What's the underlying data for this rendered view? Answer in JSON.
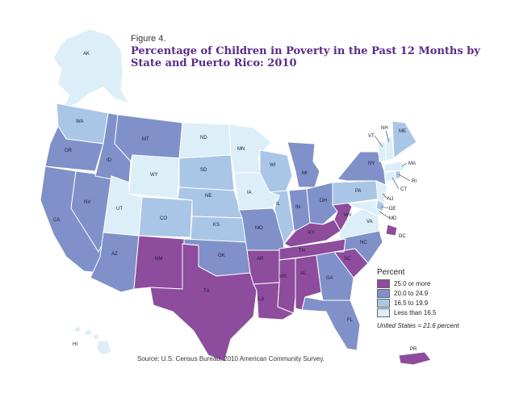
{
  "figure": {
    "label": "Figure 4.",
    "title": "Percentage of Children in Poverty in the Past 12 Months by State and Puerto Rico: 2010",
    "source": "Source: U.S. Census Bureau, 2010 American Community Survey."
  },
  "colors": {
    "c25": "#8e4c9c",
    "c20": "#7f91c8",
    "c16": "#a9c6e6",
    "clt": "#dceef8",
    "border": "#ffffff",
    "outline": "#2a2a4a"
  },
  "legend": {
    "title": "Percent",
    "items": [
      {
        "label": "25.0 or more",
        "class": "c25"
      },
      {
        "label": "20.0 to 24.9",
        "class": "c20"
      },
      {
        "label": "16.5 to 19.9",
        "class": "c16"
      },
      {
        "label": "Less than 16.5",
        "class": "clt"
      }
    ],
    "note": "United States = 21.6 percent"
  },
  "states": [
    {
      "code": "AK",
      "class": "clt"
    },
    {
      "code": "WA",
      "class": "c16"
    },
    {
      "code": "OR",
      "class": "c20"
    },
    {
      "code": "CA",
      "class": "c20"
    },
    {
      "code": "NV",
      "class": "c20"
    },
    {
      "code": "ID",
      "class": "c20"
    },
    {
      "code": "MT",
      "class": "c20"
    },
    {
      "code": "WY",
      "class": "clt"
    },
    {
      "code": "UT",
      "class": "clt"
    },
    {
      "code": "CO",
      "class": "c16"
    },
    {
      "code": "AZ",
      "class": "c20"
    },
    {
      "code": "NM",
      "class": "c25"
    },
    {
      "code": "ND",
      "class": "clt"
    },
    {
      "code": "SD",
      "class": "c16"
    },
    {
      "code": "NE",
      "class": "c16"
    },
    {
      "code": "KS",
      "class": "c16"
    },
    {
      "code": "OK",
      "class": "c20"
    },
    {
      "code": "TX",
      "class": "c25"
    },
    {
      "code": "MN",
      "class": "clt"
    },
    {
      "code": "IA",
      "class": "clt"
    },
    {
      "code": "MO",
      "class": "c20"
    },
    {
      "code": "AR",
      "class": "c25"
    },
    {
      "code": "LA",
      "class": "c25"
    },
    {
      "code": "WI",
      "class": "c16"
    },
    {
      "code": "IL",
      "class": "c16"
    },
    {
      "code": "MI",
      "class": "c20"
    },
    {
      "code": "IN",
      "class": "c20"
    },
    {
      "code": "OH",
      "class": "c20"
    },
    {
      "code": "KY",
      "class": "c25"
    },
    {
      "code": "TN",
      "class": "c25"
    },
    {
      "code": "MS",
      "class": "c25"
    },
    {
      "code": "AL",
      "class": "c25"
    },
    {
      "code": "GA",
      "class": "c20"
    },
    {
      "code": "FL",
      "class": "c20"
    },
    {
      "code": "SC",
      "class": "c25"
    },
    {
      "code": "NC",
      "class": "c20"
    },
    {
      "code": "VA",
      "class": "clt"
    },
    {
      "code": "WV",
      "class": "c25"
    },
    {
      "code": "PA",
      "class": "c16"
    },
    {
      "code": "NY",
      "class": "c20"
    },
    {
      "code": "ME",
      "class": "c16"
    },
    {
      "code": "VT",
      "class": "clt"
    },
    {
      "code": "NH",
      "class": "clt"
    },
    {
      "code": "MA",
      "class": "clt"
    },
    {
      "code": "RI",
      "class": "c16"
    },
    {
      "code": "CT",
      "class": "clt"
    },
    {
      "code": "NJ",
      "class": "clt"
    },
    {
      "code": "DE",
      "class": "c16"
    },
    {
      "code": "MD",
      "class": "clt"
    },
    {
      "code": "DC",
      "class": "c25"
    },
    {
      "code": "HI",
      "class": "clt"
    },
    {
      "code": "PR",
      "class": "c25"
    }
  ]
}
